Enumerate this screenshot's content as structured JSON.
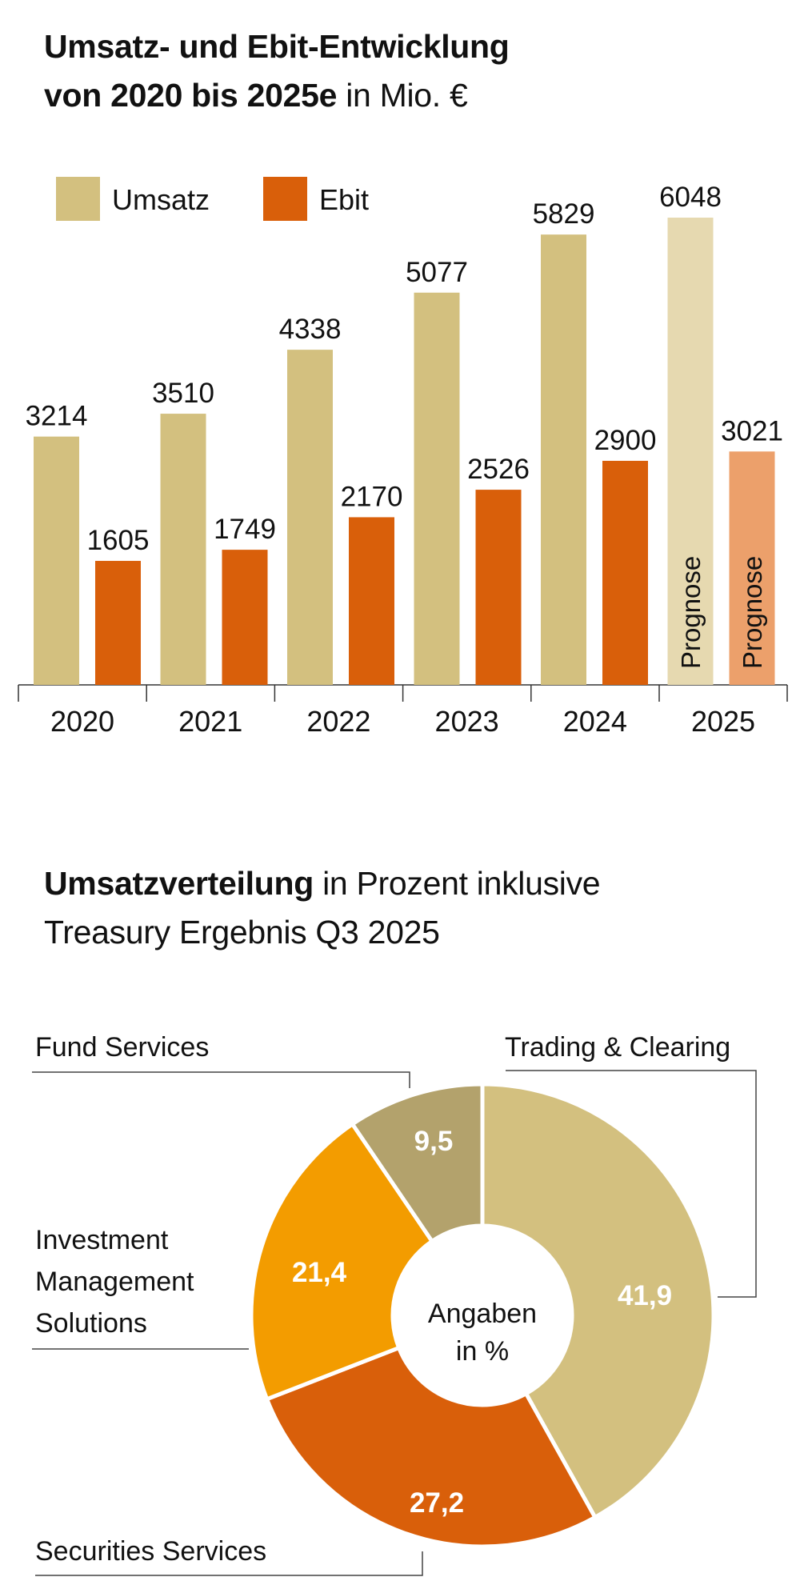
{
  "chart_data": [
    {
      "type": "bar",
      "title_bold": "Umsatz- und Ebit-Entwicklung",
      "title_bold2": "von 2020 bis 2025e",
      "title_rest": "in Mio. €",
      "categories": [
        "2020",
        "2021",
        "2022",
        "2023",
        "2024",
        "2025"
      ],
      "series": [
        {
          "name": "Umsatz",
          "values": [
            3214,
            3510,
            4338,
            5077,
            5829,
            6048
          ],
          "color": "#d3c07f",
          "forecast_color": "#e6d9b0"
        },
        {
          "name": "Ebit",
          "values": [
            1605,
            1749,
            2170,
            2526,
            2900,
            3021
          ],
          "color": "#d95f0a",
          "forecast_color": "#eca06b"
        }
      ],
      "forecast_category": "2025",
      "forecast_label": "Prognose",
      "legend": "top-left",
      "grid": false,
      "ylim": [
        0,
        6048
      ]
    },
    {
      "type": "pie",
      "donut": true,
      "title_bold": "Umsatzverteilung",
      "title_rest": "in Prozent inklusive",
      "title_line2": "Treasury Ergebnis Q3 2025",
      "center_label_1": "Angaben",
      "center_label_2": "in %",
      "slices": [
        {
          "name": "Trading & Clearing",
          "value": 41.9,
          "label": "41,9",
          "color": "#d3c07f"
        },
        {
          "name": "Securities Services",
          "value": 27.2,
          "label": "27,2",
          "color": "#d95f0a"
        },
        {
          "name": "Investment Management Solutions",
          "name_lines": [
            "Investment",
            "Management",
            "Solutions"
          ],
          "value": 21.4,
          "label": "21,4",
          "color": "#f39c00"
        },
        {
          "name": "Fund Services",
          "value": 9.5,
          "label": "9,5",
          "color": "#b3a26c"
        }
      ]
    }
  ]
}
